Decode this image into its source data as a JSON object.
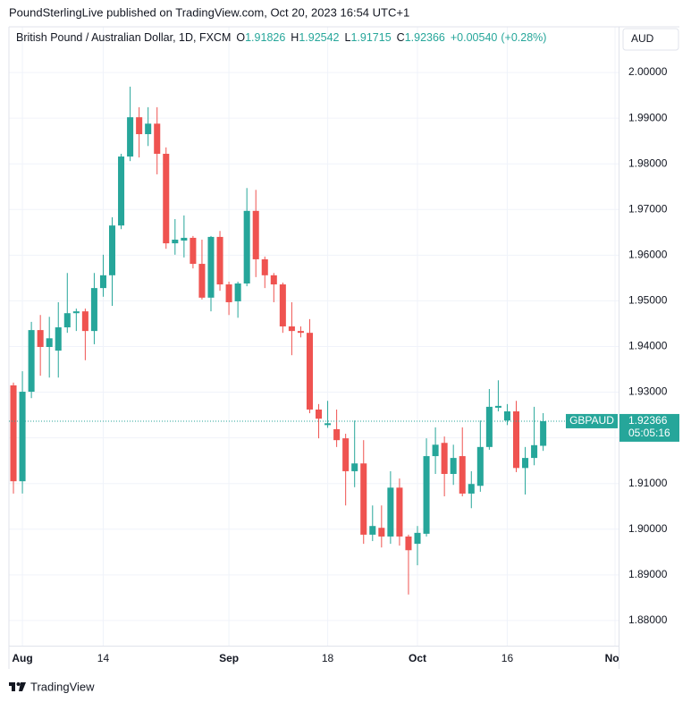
{
  "chart_data": {
    "type": "candlestick",
    "attribution": "PoundSterlingLive published on TradingView.com, Oct 20, 2023 16:54 UTC+1",
    "title": "British Pound / Australian Dollar, 1D, FXCM",
    "ohlc_letters": [
      "O",
      "H",
      "L",
      "C"
    ],
    "change": "+0.00540",
    "change_pct": "(+0.28%)",
    "currency": "AUD",
    "symbol": "GBPAUD",
    "countdown": "05:05:16",
    "brand": "TradingView",
    "up_color": "#26a69a",
    "down_color": "#ef5350",
    "grid": true,
    "open": [
      1.9315,
      1.9105,
      1.9301,
      1.9436,
      1.9399,
      1.9391,
      1.9442,
      1.9473,
      1.9477,
      1.9434,
      1.9528,
      1.9556,
      1.9665,
      1.9816,
      1.9902,
      1.9865,
      1.9888,
      1.9822,
      1.9626,
      1.9632,
      1.9638,
      1.9581,
      1.9507,
      1.964,
      1.9536,
      1.9499,
      1.9538,
      1.9697,
      1.9591,
      1.9556,
      1.9536,
      1.9444,
      1.9434,
      1.943,
      1.9262,
      1.9228,
      1.9219,
      1.9199,
      1.9127,
      1.9144,
      1.8988,
      1.9003,
      1.8984,
      1.9091,
      1.8984,
      1.8968,
      1.899,
      1.916,
      1.9189,
      1.9121,
      1.916,
      1.9078,
      1.9095,
      1.918,
      1.9266,
      1.9238,
      1.9258,
      1.9134,
      1.9156,
      1.91826
    ],
    "high": [
      1.9321,
      1.9346,
      1.9454,
      1.9469,
      1.9465,
      1.9497,
      1.9561,
      1.9483,
      1.9483,
      1.9561,
      1.9601,
      1.9683,
      1.9822,
      1.9969,
      1.9924,
      1.9924,
      1.9924,
      1.9836,
      1.9679,
      1.9687,
      1.9642,
      1.9634,
      1.9642,
      1.9653,
      1.9542,
      1.9542,
      1.9747,
      1.9743,
      1.9597,
      1.9561,
      1.954,
      1.9497,
      1.9444,
      1.946,
      1.9274,
      1.9281,
      1.9262,
      1.9209,
      1.9238,
      1.9195,
      1.9052,
      1.9052,
      1.9127,
      1.9111,
      1.8988,
      1.9007,
      1.9199,
      1.9223,
      1.9203,
      1.9185,
      1.9223,
      1.9127,
      1.9238,
      1.9307,
      1.9326,
      1.9274,
      1.9281,
      1.918,
      1.9268,
      1.92542
    ],
    "low": [
      1.9078,
      1.9078,
      1.9287,
      1.9336,
      1.9332,
      1.9332,
      1.943,
      1.9434,
      1.937,
      1.9405,
      1.9509,
      1.9489,
      1.9657,
      1.9806,
      1.9814,
      1.9839,
      1.9777,
      1.9614,
      1.9601,
      1.9595,
      1.9571,
      1.9503,
      1.9477,
      1.9522,
      1.9469,
      1.9463,
      1.9532,
      1.9552,
      1.9528,
      1.9497,
      1.943,
      1.9381,
      1.942,
      1.9254,
      1.9199,
      1.9222,
      1.918,
      1.9052,
      1.9092,
      1.8968,
      1.8974,
      1.896,
      1.8968,
      1.8964,
      1.8857,
      1.8921,
      1.8984,
      1.9121,
      1.9072,
      1.9097,
      1.9072,
      1.9046,
      1.9082,
      1.9174,
      1.9258,
      1.9228,
      1.9125,
      1.9076,
      1.914,
      1.91715
    ],
    "close": [
      1.9105,
      1.9301,
      1.9436,
      1.9399,
      1.9418,
      1.9442,
      1.9473,
      1.9477,
      1.9434,
      1.9528,
      1.9556,
      1.9665,
      1.9816,
      1.9902,
      1.9865,
      1.9888,
      1.9822,
      1.9626,
      1.9634,
      1.9638,
      1.9581,
      1.9507,
      1.964,
      1.9536,
      1.9497,
      1.9538,
      1.9697,
      1.9591,
      1.9556,
      1.9536,
      1.9444,
      1.9434,
      1.943,
      1.9262,
      1.9242,
      1.9232,
      1.9195,
      1.9127,
      1.9144,
      1.8988,
      1.9007,
      1.8984,
      1.9091,
      1.8984,
      1.8954,
      1.8992,
      1.916,
      1.9185,
      1.9121,
      1.9156,
      1.9078,
      1.9099,
      1.918,
      1.9268,
      1.927,
      1.9258,
      1.9134,
      1.9156,
      1.9184,
      1.92366
    ],
    "xlim": [
      -0.5,
      67.4
    ],
    "xticks": [
      {
        "value": 1,
        "label": "Aug"
      },
      {
        "value": 10,
        "label": "14"
      },
      {
        "value": 24,
        "label": "Sep"
      },
      {
        "value": 35,
        "label": "18"
      },
      {
        "value": 45,
        "label": "Oct"
      },
      {
        "value": 55,
        "label": "16"
      },
      {
        "value": 67,
        "label": "Nov"
      }
    ],
    "ylim": [
      1.8745,
      2.01
    ],
    "yticks": [
      {
        "value": 1.88,
        "label": "1.88000"
      },
      {
        "value": 1.89,
        "label": "1.89000"
      },
      {
        "value": 1.9,
        "label": "1.90000"
      },
      {
        "value": 1.91,
        "label": "1.91000"
      },
      {
        "value": 1.92,
        "label": "1.92000"
      },
      {
        "value": 1.93,
        "label": "1.93000"
      },
      {
        "value": 1.94,
        "label": "1.94000"
      },
      {
        "value": 1.95,
        "label": "1.95000"
      },
      {
        "value": 1.96,
        "label": "1.96000"
      },
      {
        "value": 1.97,
        "label": "1.97000"
      },
      {
        "value": 1.98,
        "label": "1.98000"
      },
      {
        "value": 1.99,
        "label": "1.99000"
      },
      {
        "value": 2.0,
        "label": "2.00000"
      }
    ]
  }
}
